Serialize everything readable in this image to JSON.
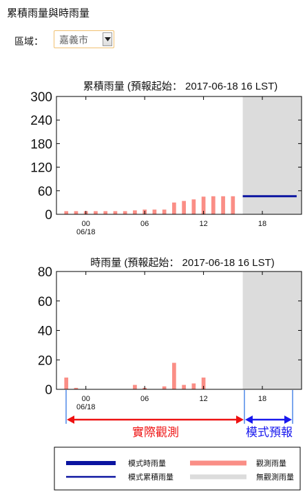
{
  "page": {
    "title": "累積雨量與時雨量"
  },
  "region": {
    "label": "區域：",
    "selected": "嘉義市"
  },
  "chart_data": [
    {
      "type": "bar",
      "title": "累積雨量 (預報起始： 2017-06-18 16 LST)",
      "ylim": [
        0,
        300
      ],
      "yticks": [
        "0",
        "60",
        "120",
        "180",
        "240",
        "300"
      ],
      "xticks": [
        {
          "hour": 0,
          "label": "00",
          "sublabel": "06/18"
        },
        {
          "hour": 6,
          "label": "06",
          "sublabel": ""
        },
        {
          "hour": 12,
          "label": "12",
          "sublabel": ""
        },
        {
          "hour": 18,
          "label": "18",
          "sublabel": ""
        }
      ],
      "xlim": [
        -3,
        22
      ],
      "forecast_start_hour": 16,
      "observed": {
        "hours": [
          -2,
          -1,
          0,
          1,
          2,
          3,
          4,
          5,
          6,
          7,
          8,
          9,
          10,
          11,
          12,
          13,
          14,
          15
        ],
        "values": [
          8,
          8,
          8,
          8,
          8,
          8,
          8,
          10,
          12,
          12,
          12,
          30,
          34,
          38,
          45,
          46,
          46,
          46
        ]
      },
      "forecast_line": {
        "from_hour": 16,
        "to_hour": 21.5,
        "value": 46
      }
    },
    {
      "type": "bar",
      "title": "時雨量 (預報起始： 2017-06-18 16 LST)",
      "ylim": [
        0,
        80
      ],
      "yticks": [
        "0",
        "20",
        "40",
        "60",
        "80"
      ],
      "xticks": [
        {
          "hour": 0,
          "label": "00",
          "sublabel": "06/18"
        },
        {
          "hour": 6,
          "label": "06",
          "sublabel": ""
        },
        {
          "hour": 12,
          "label": "12",
          "sublabel": ""
        },
        {
          "hour": 18,
          "label": "18",
          "sublabel": ""
        }
      ],
      "xlim": [
        -3,
        22
      ],
      "forecast_start_hour": 16,
      "observed": {
        "hours": [
          -2,
          -1,
          5,
          6,
          8,
          9,
          10,
          11,
          12
        ],
        "values": [
          8,
          1,
          3,
          1,
          2,
          18,
          3,
          4,
          8
        ]
      }
    }
  ],
  "annotations": {
    "observed_label": "實際觀測",
    "forecast_label": "模式預報"
  },
  "legend": {
    "model_hourly": "模式時雨量",
    "model_accum": "模式累積雨量",
    "observed": "觀測雨量",
    "no_obs": "無觀測雨量"
  },
  "colors": {
    "bar": "#fa8e86",
    "forecast_line": "#0b14a0",
    "shade": "#dcdcdc",
    "observed_arrow": "#ee1111",
    "forecast_arrow": "#1818ee",
    "bracket": "#7aa6ee"
  }
}
